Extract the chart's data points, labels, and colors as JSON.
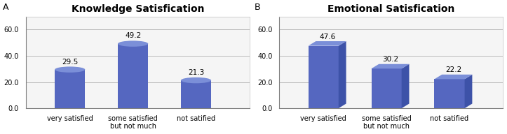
{
  "chart_A": {
    "title": "Knowledge Satisfication",
    "categories": [
      "very satisfied",
      "some satisfied\nbut not much",
      "not satified"
    ],
    "values": [
      29.5,
      49.2,
      21.3
    ],
    "label": "A",
    "bar_style": "cylinder"
  },
  "chart_B": {
    "title": "Emotional Satisfication",
    "categories": [
      "very satisfied",
      "some satisfied\nbut not much",
      "not satified"
    ],
    "values": [
      47.6,
      30.2,
      22.2
    ],
    "label": "B",
    "bar_style": "box3d"
  },
  "bar_color_face": "#5567C0",
  "bar_color_top": "#7B8FD8",
  "bar_color_side": "#3D52A8",
  "bar_color_bottom_ellipse": "#3D52A8",
  "ylim": [
    0,
    70
  ],
  "yticks": [
    0.0,
    20.0,
    40.0,
    60.0
  ],
  "background_color": "#ffffff",
  "plot_bg_color": "#f5f5f5",
  "grid_color": "#b0b0b0",
  "title_fontsize": 10,
  "tick_fontsize": 7,
  "value_fontsize": 7.5,
  "panel_label_fontsize": 9
}
